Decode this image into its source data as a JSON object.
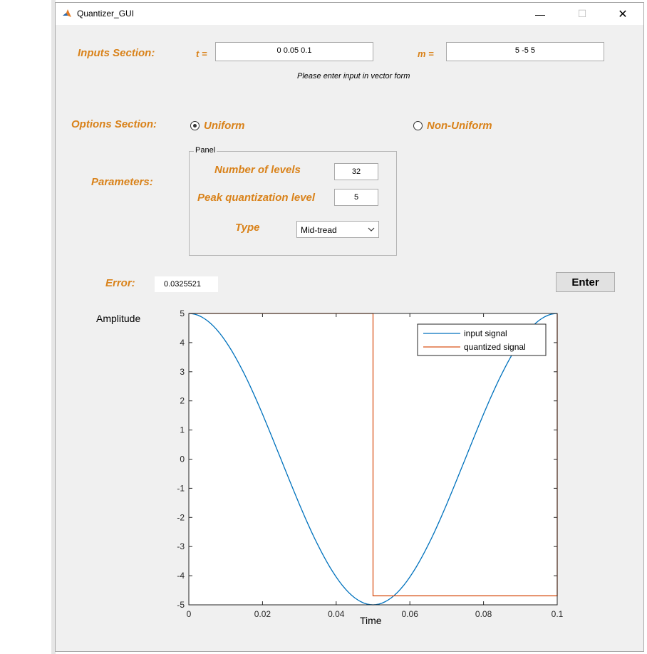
{
  "window": {
    "title": "Quantizer_GUI",
    "min_glyph": "—",
    "max_glyph": "☐",
    "close_glyph": "✕"
  },
  "inputs": {
    "section_label": "Inputs Section:",
    "t_label": "t =",
    "t_value": "0 0.05 0.1",
    "m_label": "m =",
    "m_value": "5 -5 5",
    "hint": "Please enter input in vector form"
  },
  "options": {
    "section_label": "Options Section:",
    "uniform_label": "Uniform",
    "nonuniform_label": "Non-Uniform",
    "selected": "Uniform"
  },
  "parameters": {
    "label": "Parameters:",
    "panel_title": "Panel",
    "levels_label": "Number of levels",
    "levels_value": "32",
    "peak_label": "Peak quantization level",
    "peak_value": "5",
    "type_label": "Type",
    "type_value": "Mid-tread"
  },
  "error": {
    "label": "Error:",
    "value": "0.0325521"
  },
  "enter_label": "Enter",
  "colors": {
    "accent": "#d9821a",
    "input_signal": "#0072bd",
    "quantized_signal": "#d95319"
  },
  "chart_data": {
    "type": "line",
    "xlabel": "Time",
    "ylabel": "Amplitude",
    "xlim": [
      0,
      0.1
    ],
    "ylim": [
      -5,
      5
    ],
    "xticks": [
      "0",
      "0.02",
      "0.04",
      "0.06",
      "0.08",
      "0.1"
    ],
    "yticks": [
      "5",
      "4",
      "3",
      "2",
      "1",
      "0",
      "-1",
      "-2",
      "-3",
      "-4",
      "-5"
    ],
    "legend_position": "top-right",
    "series": [
      {
        "name": "input signal",
        "color": "#0072bd",
        "x": [
          0,
          0.005,
          0.01,
          0.015,
          0.02,
          0.025,
          0.03,
          0.035,
          0.04,
          0.045,
          0.05,
          0.055,
          0.06,
          0.065,
          0.07,
          0.075,
          0.08,
          0.085,
          0.09,
          0.095,
          0.1
        ],
        "y": [
          5,
          4.76,
          4.05,
          2.94,
          1.55,
          0,
          -1.55,
          -2.94,
          -4.05,
          -4.76,
          -5,
          -4.76,
          -4.05,
          -2.94,
          -1.55,
          0,
          1.55,
          2.94,
          4.05,
          4.76,
          5
        ]
      },
      {
        "name": "quantized signal",
        "color": "#d95319",
        "x": [
          0,
          0.05,
          0.05,
          0.1,
          0.1
        ],
        "y": [
          5,
          5,
          -4.69,
          -4.69,
          5
        ]
      }
    ]
  }
}
